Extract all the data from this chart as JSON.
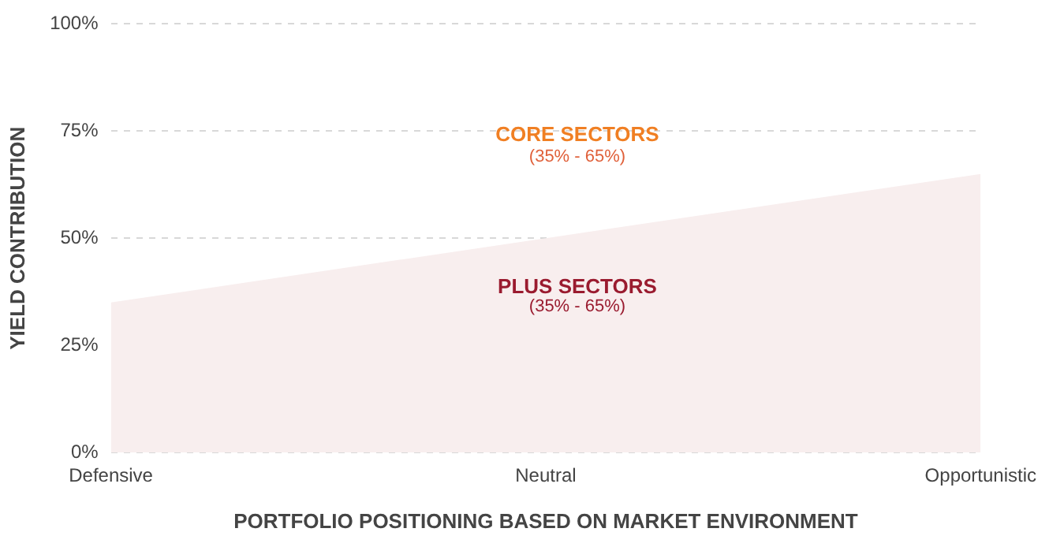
{
  "chart_data": {
    "type": "area",
    "xlabel": "PORTFOLIO POSITIONING BASED ON MARKET ENVIRONMENT",
    "ylabel": "YIELD CONTRIBUTION",
    "categories": [
      "Defensive",
      "Neutral",
      "Opportunistic"
    ],
    "series": [
      {
        "color": "#f8eeee",
        "values": [
          35,
          50,
          65
        ]
      }
    ],
    "ylim": [
      0,
      100
    ],
    "yticks": [
      {
        "value": 0,
        "label": "0%"
      },
      {
        "value": 25,
        "label": "25%"
      },
      {
        "value": 50,
        "label": "50%"
      },
      {
        "value": 75,
        "label": "75%"
      },
      {
        "value": 100,
        "label": "100%"
      }
    ],
    "grid": "y",
    "legend": false,
    "annotations": [
      "CORE SECTORS",
      "(35% - 65%)",
      "PLUS SECTORS",
      "(35% - 65%)"
    ]
  }
}
